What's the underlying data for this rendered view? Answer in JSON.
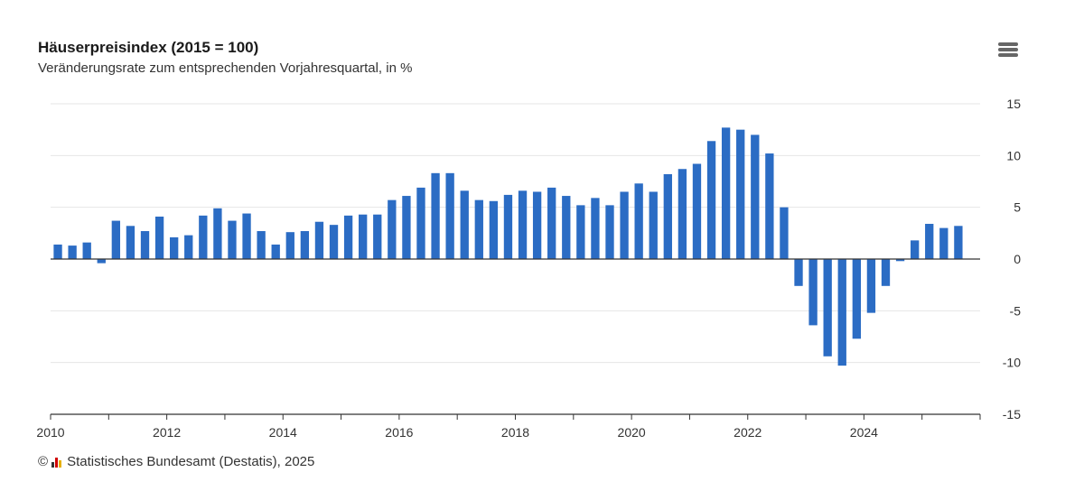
{
  "header": {
    "title": "Häuserpreisindex (2015 = 100)",
    "subtitle": "Veränderungsrate zum entsprechenden Vorjahresquartal, in %"
  },
  "footer": {
    "copyright_symbol": "©",
    "credits": "Statistisches Bundesamt (Destatis), 2025"
  },
  "colors": {
    "bar": "#2b6cc4",
    "grid": "#e6e6e6",
    "axis": "#333333"
  },
  "chart_data": {
    "type": "bar",
    "title": "Häuserpreisindex (2015 = 100)",
    "subtitle": "Veränderungsrate zum entsprechenden Vorjahresquartal, in %",
    "xlabel": "",
    "ylabel": "",
    "ylim": [
      -15,
      15
    ],
    "yticks": [
      15,
      10,
      5,
      0,
      -5,
      -10,
      -15
    ],
    "xtick_labels": [
      "2010",
      "2012",
      "2014",
      "2016",
      "2018",
      "2020",
      "2022",
      "2024"
    ],
    "x_start_year": 2010,
    "x_end_year": 2026,
    "legend": "none",
    "categories": [
      "2010 Q1",
      "2010 Q2",
      "2010 Q3",
      "2010 Q4",
      "2011 Q1",
      "2011 Q2",
      "2011 Q3",
      "2011 Q4",
      "2012 Q1",
      "2012 Q2",
      "2012 Q3",
      "2012 Q4",
      "2013 Q1",
      "2013 Q2",
      "2013 Q3",
      "2013 Q4",
      "2014 Q1",
      "2014 Q2",
      "2014 Q3",
      "2014 Q4",
      "2015 Q1",
      "2015 Q2",
      "2015 Q3",
      "2015 Q4",
      "2016 Q1",
      "2016 Q2",
      "2016 Q3",
      "2016 Q4",
      "2017 Q1",
      "2017 Q2",
      "2017 Q3",
      "2017 Q4",
      "2018 Q1",
      "2018 Q2",
      "2018 Q3",
      "2018 Q4",
      "2019 Q1",
      "2019 Q2",
      "2019 Q3",
      "2019 Q4",
      "2020 Q1",
      "2020 Q2",
      "2020 Q3",
      "2020 Q4",
      "2021 Q1",
      "2021 Q2",
      "2021 Q3",
      "2021 Q4",
      "2022 Q1",
      "2022 Q2",
      "2022 Q3",
      "2022 Q4",
      "2023 Q1",
      "2023 Q2",
      "2023 Q3",
      "2023 Q4",
      "2024 Q1",
      "2024 Q2",
      "2024 Q3",
      "2024 Q4",
      "2025 Q1",
      "2025 Q2",
      "2025 Q3"
    ],
    "values": [
      1.4,
      1.3,
      1.6,
      -0.4,
      3.7,
      3.2,
      2.7,
      4.1,
      2.1,
      2.3,
      4.2,
      4.9,
      3.7,
      4.4,
      2.7,
      1.4,
      2.6,
      2.7,
      3.6,
      3.3,
      4.2,
      4.3,
      4.3,
      5.7,
      6.1,
      6.9,
      8.3,
      8.3,
      6.6,
      5.7,
      5.6,
      6.2,
      6.6,
      6.5,
      6.9,
      6.1,
      5.2,
      5.9,
      5.2,
      6.5,
      7.3,
      6.5,
      8.2,
      8.7,
      9.2,
      11.4,
      12.7,
      12.5,
      12.0,
      10.2,
      5.0,
      -2.6,
      -6.4,
      -9.4,
      -10.3,
      -7.7,
      -5.2,
      -2.6,
      -0.2,
      1.8,
      3.4,
      3.0,
      3.2
    ]
  }
}
